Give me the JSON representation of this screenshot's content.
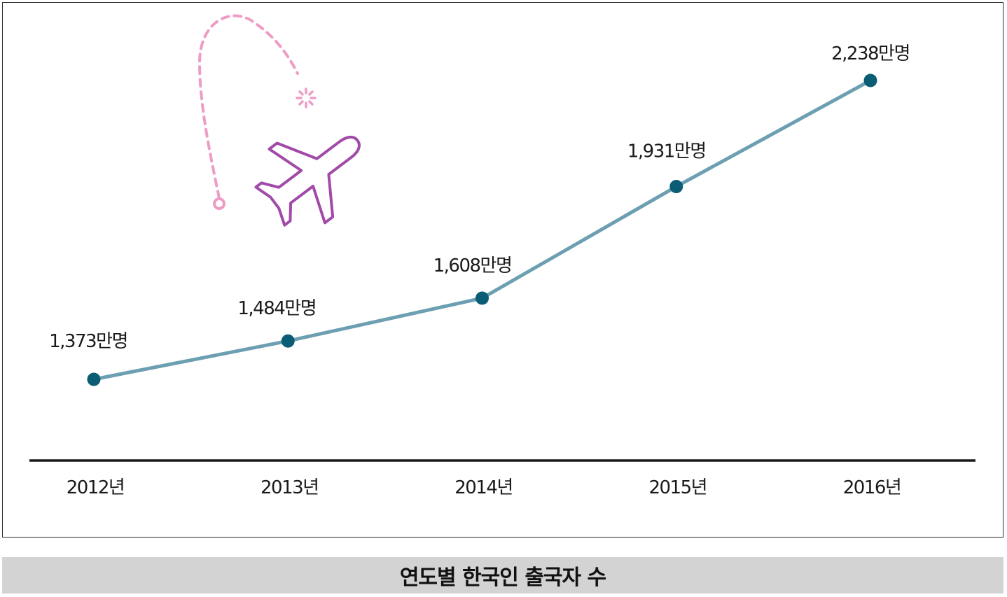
{
  "chart_data": {
    "type": "line",
    "title": "연도별 한국인 출국자 수",
    "categories": [
      "2012년",
      "2013년",
      "2014년",
      "2015년",
      "2016년"
    ],
    "values": [
      1373,
      1484,
      1608,
      1931,
      2238
    ],
    "data_labels": [
      "1,373만명",
      "1,484만명",
      "1,608만명",
      "1,931만명",
      "2,238만명"
    ],
    "unit": "만명",
    "xlabel": "",
    "ylabel": "",
    "grid": false,
    "legend": "none"
  },
  "colors": {
    "line": "#6c9fb1",
    "marker": "#0b5d75",
    "axis": "#1a1a1a",
    "caption_bg": "#d3d3d4",
    "plane": "#a24aa8",
    "flight_path": "#ee9cc6"
  },
  "decoration": {
    "icon": "airplane-icon",
    "path": "dashed-flight-path"
  }
}
